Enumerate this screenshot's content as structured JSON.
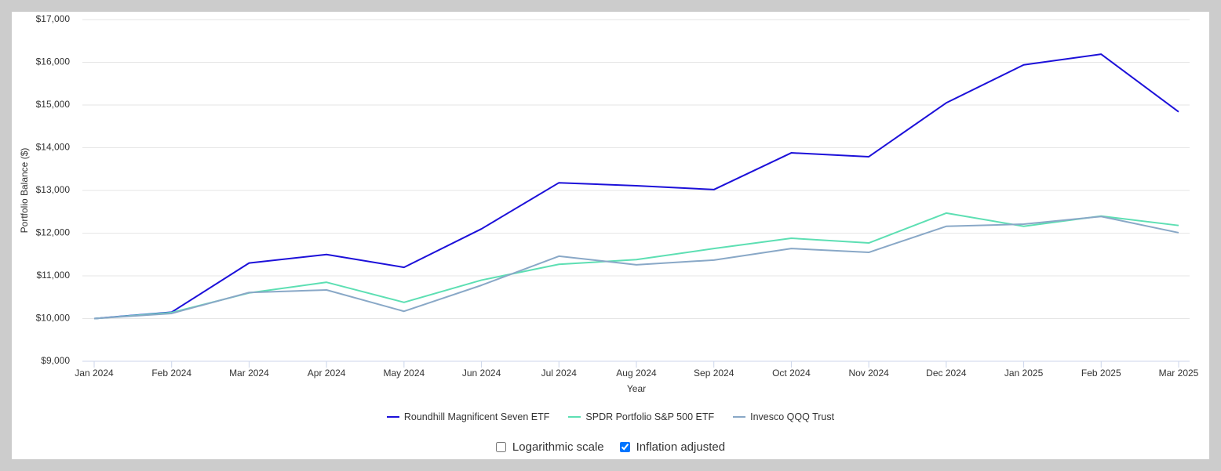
{
  "chart_data": {
    "type": "line",
    "x_label": "Year",
    "y_label": "Portfolio Balance ($)",
    "categories": [
      "Jan 2024",
      "Feb 2024",
      "Mar 2024",
      "Apr 2024",
      "May 2024",
      "Jun 2024",
      "Jul 2024",
      "Aug 2024",
      "Sep 2024",
      "Oct 2024",
      "Nov 2024",
      "Dec 2024",
      "Jan 2025",
      "Feb 2025",
      "Mar 2025"
    ],
    "series": [
      {
        "name": "Roundhill Magnificent Seven ETF",
        "color": "#1c10d9",
        "values": [
          10000,
          10150,
          11300,
          11500,
          11200,
          12100,
          13180,
          13110,
          13020,
          13880,
          13790,
          15050,
          15940,
          16190,
          14840
        ]
      },
      {
        "name": "SPDR Portfolio S&P 500 ETF",
        "color": "#5ddfb3",
        "values": [
          10000,
          10140,
          10600,
          10850,
          10380,
          10900,
          11270,
          11380,
          11640,
          11880,
          11770,
          12470,
          12160,
          12400,
          12180
        ]
      },
      {
        "name": "Invesco QQQ Trust",
        "color": "#89a8c7",
        "values": [
          10000,
          10120,
          10610,
          10670,
          10170,
          10780,
          11460,
          11260,
          11370,
          11640,
          11550,
          12160,
          12210,
          12390,
          12010
        ]
      }
    ],
    "ylim": [
      9000,
      17000
    ],
    "yticks": [
      {
        "value": 9000,
        "label": "$9,000"
      },
      {
        "value": 10000,
        "label": "$10,000"
      },
      {
        "value": 11000,
        "label": "$11,000"
      },
      {
        "value": 12000,
        "label": "$12,000"
      },
      {
        "value": 13000,
        "label": "$13,000"
      },
      {
        "value": 14000,
        "label": "$14,000"
      },
      {
        "value": 15000,
        "label": "$15,000"
      },
      {
        "value": 16000,
        "label": "$16,000"
      },
      {
        "value": 17000,
        "label": "$17,000"
      }
    ],
    "grid": true
  },
  "controls": [
    {
      "label": "Logarithmic scale",
      "checked": false
    },
    {
      "label": "Inflation adjusted",
      "checked": true
    }
  ]
}
